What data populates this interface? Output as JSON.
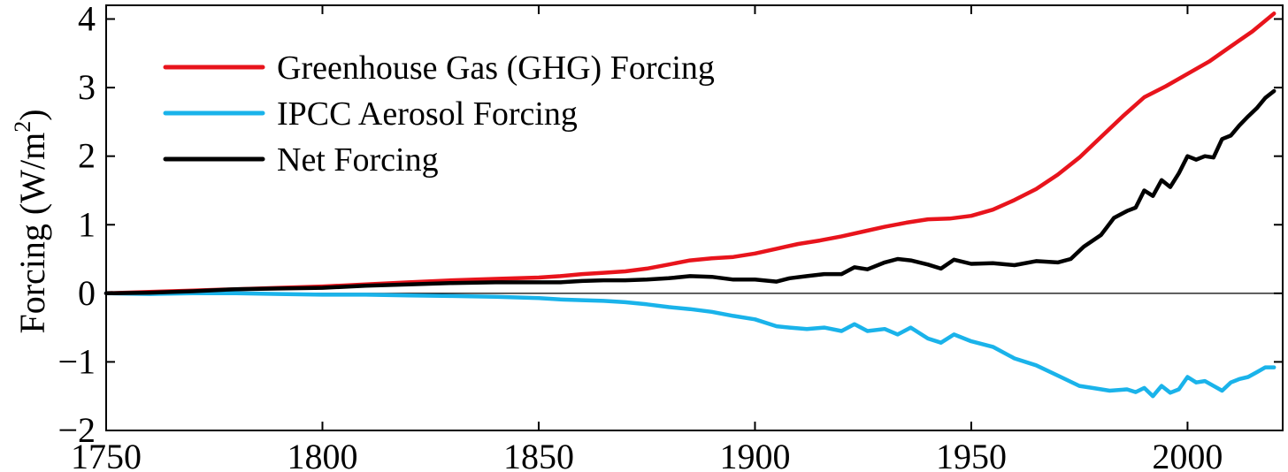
{
  "chart_data": {
    "type": "line",
    "title": "",
    "xlabel": "",
    "ylabel": "Forcing (W/m2)",
    "ylabel_parts": {
      "text": "Forcing (W/m",
      "superscript": "2",
      "close": ")"
    },
    "xlim": [
      1750,
      2022
    ],
    "ylim": [
      -2,
      4.2
    ],
    "xticks": [
      1750,
      1800,
      1850,
      1900,
      1950,
      2000
    ],
    "yticks": [
      -2,
      -1,
      0,
      1,
      2,
      3,
      4
    ],
    "ytick_labels": [
      "−2",
      "−1",
      "0",
      "1",
      "2",
      "3",
      "4"
    ],
    "grid": false,
    "zero_line": true,
    "legend_position": "top-left",
    "series": [
      {
        "name": "Greenhouse Gas (GHG) Forcing",
        "color": "#e8141c",
        "x": [
          1750,
          1760,
          1770,
          1780,
          1790,
          1800,
          1810,
          1820,
          1830,
          1840,
          1850,
          1855,
          1860,
          1865,
          1870,
          1875,
          1880,
          1885,
          1890,
          1895,
          1900,
          1905,
          1910,
          1915,
          1920,
          1925,
          1930,
          1935,
          1940,
          1945,
          1950,
          1955,
          1960,
          1965,
          1970,
          1975,
          1980,
          1985,
          1990,
          1995,
          2000,
          2005,
          2010,
          2015,
          2020
        ],
        "y": [
          0.0,
          0.02,
          0.04,
          0.06,
          0.08,
          0.1,
          0.13,
          0.16,
          0.19,
          0.21,
          0.23,
          0.25,
          0.28,
          0.3,
          0.32,
          0.36,
          0.42,
          0.48,
          0.51,
          0.53,
          0.58,
          0.65,
          0.72,
          0.77,
          0.83,
          0.9,
          0.97,
          1.03,
          1.08,
          1.09,
          1.13,
          1.22,
          1.36,
          1.52,
          1.73,
          1.98,
          2.28,
          2.58,
          2.86,
          3.02,
          3.2,
          3.38,
          3.6,
          3.82,
          4.08
        ]
      },
      {
        "name": "IPCC Aerosol Forcing",
        "color": "#1ab3ea",
        "x": [
          1750,
          1760,
          1770,
          1780,
          1790,
          1800,
          1810,
          1820,
          1830,
          1840,
          1850,
          1855,
          1860,
          1865,
          1870,
          1875,
          1880,
          1885,
          1890,
          1895,
          1900,
          1905,
          1908,
          1912,
          1916,
          1920,
          1923,
          1926,
          1930,
          1933,
          1936,
          1940,
          1943,
          1946,
          1950,
          1955,
          1960,
          1965,
          1970,
          1975,
          1978,
          1982,
          1986,
          1988,
          1990,
          1992,
          1994,
          1996,
          1998,
          2000,
          2002,
          2004,
          2006,
          2008,
          2010,
          2012,
          2014,
          2016,
          2018,
          2020
        ],
        "y": [
          0.0,
          -0.01,
          0.0,
          0.0,
          -0.01,
          -0.02,
          -0.02,
          -0.03,
          -0.04,
          -0.05,
          -0.07,
          -0.09,
          -0.1,
          -0.11,
          -0.13,
          -0.16,
          -0.2,
          -0.23,
          -0.27,
          -0.33,
          -0.38,
          -0.48,
          -0.5,
          -0.52,
          -0.5,
          -0.55,
          -0.45,
          -0.55,
          -0.52,
          -0.6,
          -0.5,
          -0.66,
          -0.72,
          -0.6,
          -0.7,
          -0.78,
          -0.95,
          -1.05,
          -1.2,
          -1.35,
          -1.38,
          -1.42,
          -1.4,
          -1.44,
          -1.38,
          -1.5,
          -1.35,
          -1.45,
          -1.4,
          -1.22,
          -1.3,
          -1.28,
          -1.35,
          -1.42,
          -1.3,
          -1.25,
          -1.22,
          -1.15,
          -1.08,
          -1.08
        ]
      },
      {
        "name": "Net Forcing",
        "color": "#000000",
        "x": [
          1750,
          1760,
          1770,
          1780,
          1790,
          1800,
          1810,
          1820,
          1830,
          1840,
          1850,
          1855,
          1860,
          1865,
          1870,
          1875,
          1880,
          1885,
          1890,
          1895,
          1900,
          1905,
          1908,
          1912,
          1916,
          1920,
          1923,
          1926,
          1930,
          1933,
          1936,
          1940,
          1943,
          1946,
          1950,
          1955,
          1960,
          1965,
          1970,
          1973,
          1976,
          1980,
          1983,
          1986,
          1988,
          1990,
          1992,
          1994,
          1996,
          1998,
          2000,
          2002,
          2004,
          2006,
          2008,
          2010,
          2012,
          2014,
          2016,
          2018,
          2020
        ],
        "y": [
          0.0,
          0.01,
          0.03,
          0.06,
          0.07,
          0.08,
          0.11,
          0.13,
          0.15,
          0.16,
          0.16,
          0.16,
          0.18,
          0.19,
          0.19,
          0.2,
          0.22,
          0.25,
          0.24,
          0.2,
          0.2,
          0.17,
          0.22,
          0.25,
          0.28,
          0.28,
          0.38,
          0.35,
          0.45,
          0.5,
          0.48,
          0.42,
          0.36,
          0.49,
          0.43,
          0.44,
          0.41,
          0.47,
          0.45,
          0.5,
          0.68,
          0.85,
          1.1,
          1.2,
          1.25,
          1.5,
          1.42,
          1.65,
          1.55,
          1.75,
          2.0,
          1.95,
          2.0,
          1.98,
          2.25,
          2.3,
          2.45,
          2.58,
          2.7,
          2.85,
          2.95
        ]
      }
    ]
  }
}
